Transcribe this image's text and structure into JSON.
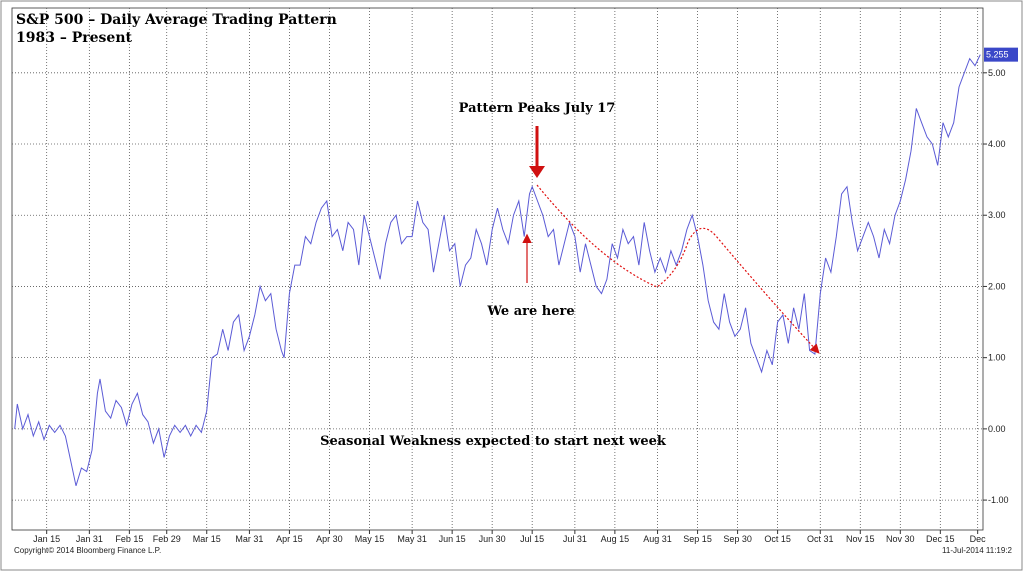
{
  "chart_data": {
    "type": "line",
    "title": "S&P 500 – Daily Average Trading Pattern",
    "subtitle": "1983 – Present",
    "annotations": [
      "Pattern Peaks July 17",
      "We are here",
      "Seasonal Weakness expected to start next week"
    ],
    "footer_left": "Copyright© 2014 Bloomberg Finance L.P.",
    "footer_right": "11-Jul-2014 11:19:2",
    "x": [
      3,
      4,
      6,
      8,
      10,
      12,
      14,
      16,
      18,
      20,
      22,
      24,
      26,
      28,
      30,
      32,
      34,
      35,
      37,
      39,
      41,
      43,
      45,
      47,
      49,
      51,
      53,
      55,
      57,
      59,
      61,
      63,
      65,
      67,
      69,
      71,
      73,
      75,
      77,
      79,
      81,
      83,
      85,
      87,
      89,
      91,
      93,
      95,
      97,
      99,
      101,
      103,
      104,
      106,
      108,
      110,
      112,
      114,
      116,
      118,
      120,
      122,
      124,
      126,
      128,
      130,
      132,
      134,
      136,
      138,
      140,
      142,
      144,
      146,
      148,
      150,
      152,
      154,
      156,
      158,
      160,
      162,
      164,
      166,
      168,
      170,
      172,
      174,
      176,
      178,
      180,
      182,
      184,
      186,
      188,
      190,
      192,
      194,
      196,
      197,
      199,
      201,
      203,
      205,
      207,
      209,
      211,
      213,
      215,
      217,
      219,
      221,
      223,
      225,
      227,
      229,
      231,
      233,
      235,
      237,
      239,
      241,
      243,
      245,
      247,
      249,
      251,
      253,
      255,
      257,
      259,
      261,
      263,
      265,
      267,
      269,
      271,
      273,
      275,
      277,
      279,
      281,
      283,
      285,
      287,
      289,
      291,
      293,
      295,
      297,
      299,
      301,
      303,
      305,
      307,
      309,
      311,
      313,
      315,
      317,
      319,
      321,
      323,
      325,
      327,
      329,
      331,
      333,
      335,
      337,
      339,
      341,
      343,
      345,
      347,
      349,
      351,
      353,
      355,
      357,
      359,
      361,
      363,
      365
    ],
    "series": [
      {
        "color": "#5b5bd6",
        "values": [
          0.0,
          0.35,
          0.0,
          0.2,
          -0.1,
          0.1,
          -0.15,
          0.05,
          -0.05,
          0.05,
          -0.1,
          -0.45,
          -0.8,
          -0.55,
          -0.6,
          -0.3,
          0.5,
          0.7,
          0.25,
          0.15,
          0.4,
          0.3,
          0.05,
          0.35,
          0.5,
          0.2,
          0.1,
          -0.2,
          0.0,
          -0.4,
          -0.1,
          0.05,
          -0.05,
          0.05,
          -0.1,
          0.05,
          -0.05,
          0.25,
          1.0,
          1.05,
          1.4,
          1.1,
          1.5,
          1.6,
          1.1,
          1.3,
          1.6,
          2.0,
          1.8,
          1.9,
          1.4,
          1.1,
          1.0,
          1.9,
          2.3,
          2.3,
          2.7,
          2.6,
          2.9,
          3.1,
          3.2,
          2.7,
          2.8,
          2.5,
          2.9,
          2.8,
          2.3,
          3.0,
          2.7,
          2.4,
          2.1,
          2.6,
          2.9,
          3.0,
          2.6,
          2.7,
          2.7,
          3.2,
          2.9,
          2.8,
          2.2,
          2.6,
          3.0,
          2.5,
          2.6,
          2.0,
          2.3,
          2.4,
          2.8,
          2.6,
          2.3,
          2.8,
          3.1,
          2.8,
          2.6,
          3.0,
          3.2,
          2.7,
          3.3,
          3.4,
          3.2,
          3.0,
          2.7,
          2.8,
          2.3,
          2.6,
          2.9,
          2.7,
          2.2,
          2.6,
          2.3,
          2.0,
          1.9,
          2.1,
          2.6,
          2.4,
          2.8,
          2.6,
          2.7,
          2.3,
          2.9,
          2.5,
          2.2,
          2.4,
          2.2,
          2.5,
          2.3,
          2.5,
          2.8,
          3.0,
          2.7,
          2.3,
          1.8,
          1.5,
          1.4,
          1.9,
          1.5,
          1.3,
          1.4,
          1.7,
          1.2,
          1.0,
          0.8,
          1.1,
          0.9,
          1.5,
          1.6,
          1.2,
          1.7,
          1.4,
          1.9,
          1.1,
          1.05,
          1.9,
          2.4,
          2.2,
          2.7,
          3.3,
          3.4,
          2.9,
          2.5,
          2.7,
          2.9,
          2.7,
          2.4,
          2.8,
          2.6,
          3.0,
          3.2,
          3.5,
          3.9,
          4.5,
          4.3,
          4.1,
          4.0,
          3.7,
          4.3,
          4.1,
          4.3,
          4.8,
          5.0,
          5.2,
          5.1,
          5.255
        ]
      }
    ],
    "xlim": [
      2,
      366
    ],
    "xticks": [
      {
        "value": 15,
        "label": "Jan 15"
      },
      {
        "value": 31,
        "label": "Jan 31"
      },
      {
        "value": 46,
        "label": "Feb 15"
      },
      {
        "value": 60,
        "label": "Feb 29"
      },
      {
        "value": 75,
        "label": "Mar 15"
      },
      {
        "value": 91,
        "label": "Mar 31"
      },
      {
        "value": 106,
        "label": "Apr 15"
      },
      {
        "value": 121,
        "label": "Apr 30"
      },
      {
        "value": 136,
        "label": "May 15"
      },
      {
        "value": 152,
        "label": "May 31"
      },
      {
        "value": 167,
        "label": "Jun 15"
      },
      {
        "value": 182,
        "label": "Jun 30"
      },
      {
        "value": 197,
        "label": "Jul 15"
      },
      {
        "value": 213,
        "label": "Jul 31"
      },
      {
        "value": 228,
        "label": "Aug 15"
      },
      {
        "value": 244,
        "label": "Aug 31"
      },
      {
        "value": 259,
        "label": "Sep 15"
      },
      {
        "value": 274,
        "label": "Sep 30"
      },
      {
        "value": 289,
        "label": "Oct 15"
      },
      {
        "value": 305,
        "label": "Oct 31"
      },
      {
        "value": 320,
        "label": "Nov 15"
      },
      {
        "value": 335,
        "label": "Nov 30"
      },
      {
        "value": 350,
        "label": "Dec 15"
      },
      {
        "value": 364,
        "label": "Dec"
      }
    ],
    "ylim": [
      -1.42,
      5.91
    ],
    "yticks": [
      {
        "value": -1,
        "label": "-1.00"
      },
      {
        "value": 0,
        "label": "0.00"
      },
      {
        "value": 1,
        "label": "1.00"
      },
      {
        "value": 2,
        "label": "2.00"
      },
      {
        "value": 3,
        "label": "3.00"
      },
      {
        "value": 4,
        "label": "4.00"
      },
      {
        "value": 5,
        "label": "5.00"
      }
    ],
    "grid": true
  }
}
